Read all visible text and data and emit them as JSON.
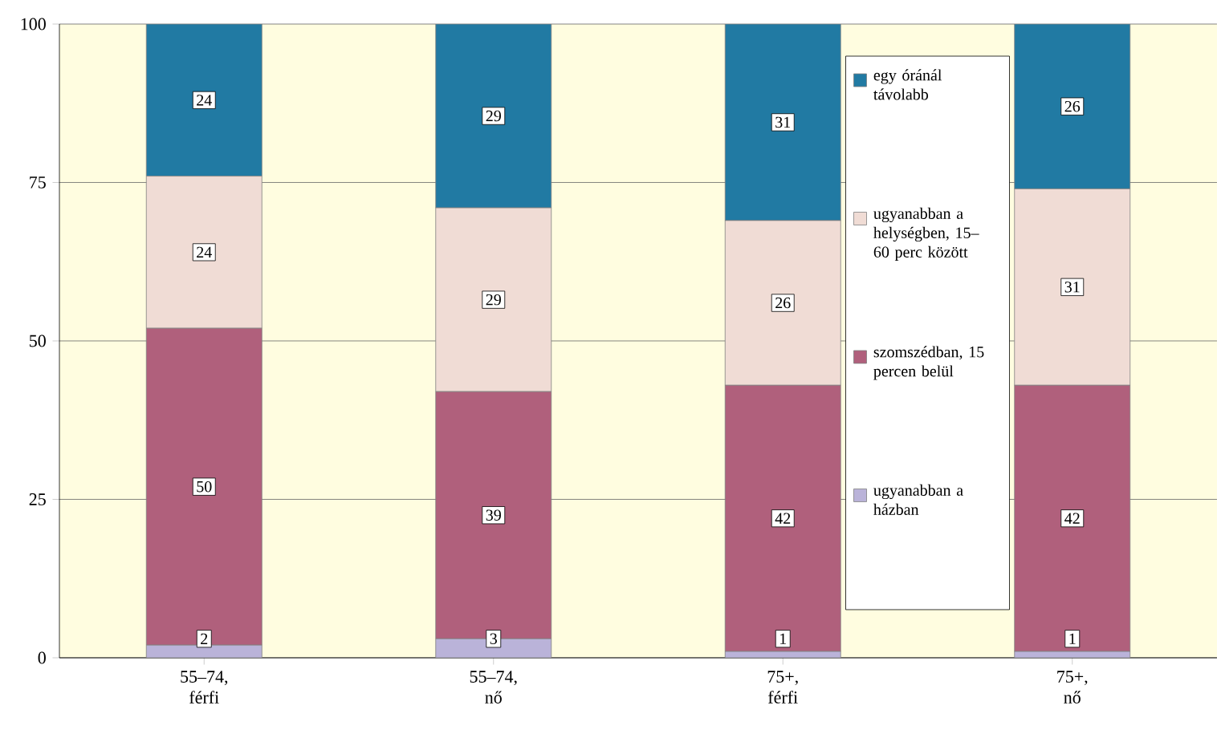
{
  "chart_data": {
    "type": "bar",
    "stacked": true,
    "categories": [
      "55–74, férfi",
      "55–74, nő",
      "75+, férfi",
      "75+, nő"
    ],
    "series": [
      {
        "name": "ugyanabban a házban",
        "color": "#bab3d9",
        "values": [
          2,
          3,
          1,
          1
        ]
      },
      {
        "name": "szomszédban, 15 percen belül",
        "color": "#b0607c",
        "values": [
          50,
          39,
          42,
          42
        ]
      },
      {
        "name": "ugyanabban a helységben, 15–60 perc között",
        "color": "#f0dcd5",
        "values": [
          24,
          29,
          26,
          31
        ]
      },
      {
        "name": "egy óránál távolabb",
        "color": "#217aa3",
        "values": [
          24,
          29,
          31,
          26
        ]
      }
    ],
    "ylim": [
      0,
      100
    ],
    "yticks": [
      0,
      25,
      50,
      75,
      100
    ],
    "grid": "y",
    "legend": "right",
    "data_labels": true
  }
}
